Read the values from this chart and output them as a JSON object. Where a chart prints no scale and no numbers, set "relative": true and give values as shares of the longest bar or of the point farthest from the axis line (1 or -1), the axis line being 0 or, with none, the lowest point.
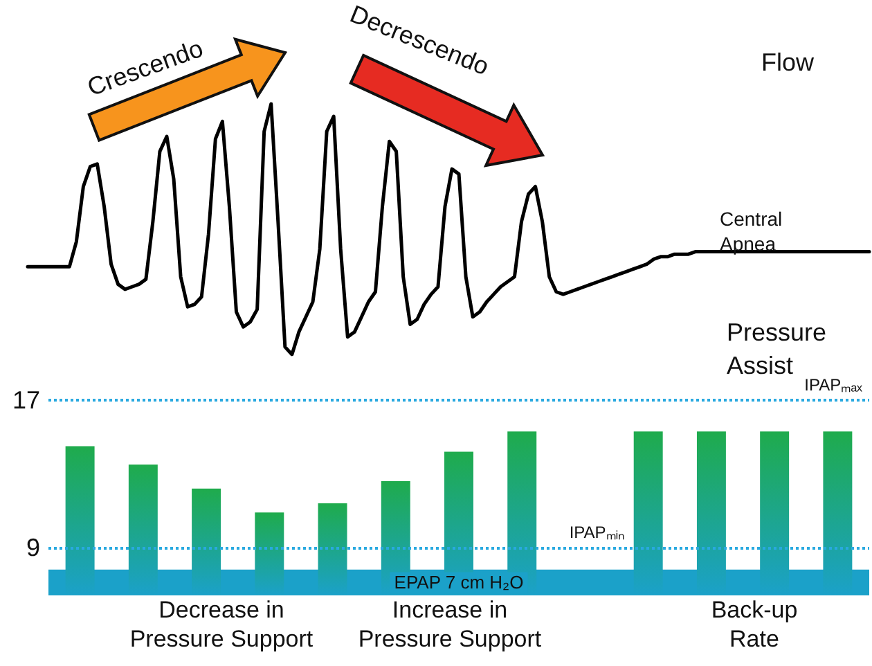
{
  "chart_data": [
    {
      "type": "line",
      "title": "Flow",
      "relative": true,
      "tick_labels": false,
      "categories": [
        null,
        null,
        null,
        null,
        null,
        null,
        null,
        null,
        null,
        null,
        null,
        null,
        null,
        null,
        null,
        null,
        null,
        null,
        null,
        null,
        null,
        null,
        null,
        null,
        null,
        null,
        null,
        null,
        null,
        null,
        null,
        null,
        null,
        null,
        null,
        null,
        null,
        null,
        null,
        null,
        null,
        null,
        null,
        null,
        null,
        null,
        null,
        null,
        null,
        null,
        null,
        null,
        null,
        null,
        null,
        null,
        null,
        null,
        null,
        null,
        null,
        null,
        null,
        null,
        null,
        null,
        null,
        null,
        null,
        null,
        null,
        null,
        null,
        null,
        null,
        null,
        null,
        null,
        null,
        null,
        null,
        null,
        null,
        null,
        null,
        null,
        null,
        null,
        null,
        null,
        null,
        null,
        null,
        null,
        null,
        null,
        null,
        null,
        null,
        null,
        null,
        null,
        null,
        null,
        null,
        null,
        null,
        null,
        null,
        null,
        null,
        null,
        null,
        null,
        null,
        null,
        null,
        null,
        null,
        null,
        null,
        null
      ],
      "series": [
        {
          "color": "#000000",
          "values": [
            0.35,
            0.35,
            0.35,
            0.35,
            0.35,
            0.35,
            0.35,
            0.45,
            0.67,
            0.75,
            0.76,
            0.59,
            0.36,
            0.28,
            0.26,
            0.27,
            0.28,
            0.3,
            0.53,
            0.81,
            0.87,
            0.7,
            0.31,
            0.19,
            0.2,
            0.23,
            0.48,
            0.86,
            0.93,
            0.59,
            0.17,
            0.11,
            0.13,
            0.18,
            0.89,
            1,
            0.53,
            0.03,
            0,
            0.09,
            0.15,
            0.21,
            0.42,
            0.89,
            0.95,
            0.42,
            0.07,
            0.09,
            0.15,
            0.21,
            0.25,
            0.59,
            0.85,
            0.81,
            0.31,
            0.12,
            0.14,
            0.2,
            0.24,
            0.27,
            0.59,
            0.74,
            0.72,
            0.31,
            0.15,
            0.17,
            0.21,
            0.24,
            0.27,
            0.29,
            0.31,
            0.53,
            0.64,
            0.67,
            0.53,
            0.31,
            0.25,
            0.24,
            0.25,
            0.26,
            0.27,
            0.28,
            0.29,
            0.3,
            0.31,
            0.32,
            0.33,
            0.34,
            0.35,
            0.36,
            0.38,
            0.39,
            0.39,
            0.4,
            0.4,
            0.4,
            0.41,
            0.41,
            0.41,
            0.41,
            0.41,
            0.41,
            0.41,
            0.41,
            0.41,
            0.41,
            0.41,
            0.41,
            0.41,
            0.41,
            0.41,
            0.41,
            0.41,
            0.41,
            0.41,
            0.41,
            0.41,
            0.41,
            0.41,
            0.41,
            0.41,
            0.41
          ]
        }
      ],
      "annotations": [
        "Crescendo",
        "Decrescendo",
        "Central Apnea"
      ]
    },
    {
      "type": "bar",
      "title": "Pressure Assist",
      "tick_labels": "y",
      "categories": [
        null,
        null,
        null,
        null,
        null,
        null,
        null,
        null,
        null,
        null,
        null,
        null,
        null
      ],
      "series": [
        {
          "color": "#1fab4c",
          "values": [
            14.5,
            13.5,
            12.2,
            10.9,
            11.4,
            12.6,
            14.2,
            15.3,
            null,
            15.3,
            15.3,
            15.3,
            15.3
          ]
        }
      ],
      "ylim": [
        6.4,
        17
      ],
      "yticks": [
        9,
        17
      ],
      "ref_lines": [
        {
          "axis": "y",
          "value": 17,
          "label": "IPAPₘₐₓ",
          "color": "#29a9e0",
          "line_style": "dotted"
        },
        {
          "axis": "y",
          "value": 9,
          "label": "IPAPₘᵢₙ",
          "color": "#29a9e0",
          "line_style": "dotted"
        }
      ],
      "bands": [
        {
          "axis": "y",
          "from": 6.4,
          "to": 7.8,
          "label": "EPAP 7 cm H₂O",
          "color": "#1ba1c9"
        }
      ],
      "annotations": [
        "Decrease in Pressure Support",
        "Increase in Pressure Support",
        "Back-up Rate"
      ]
    }
  ]
}
